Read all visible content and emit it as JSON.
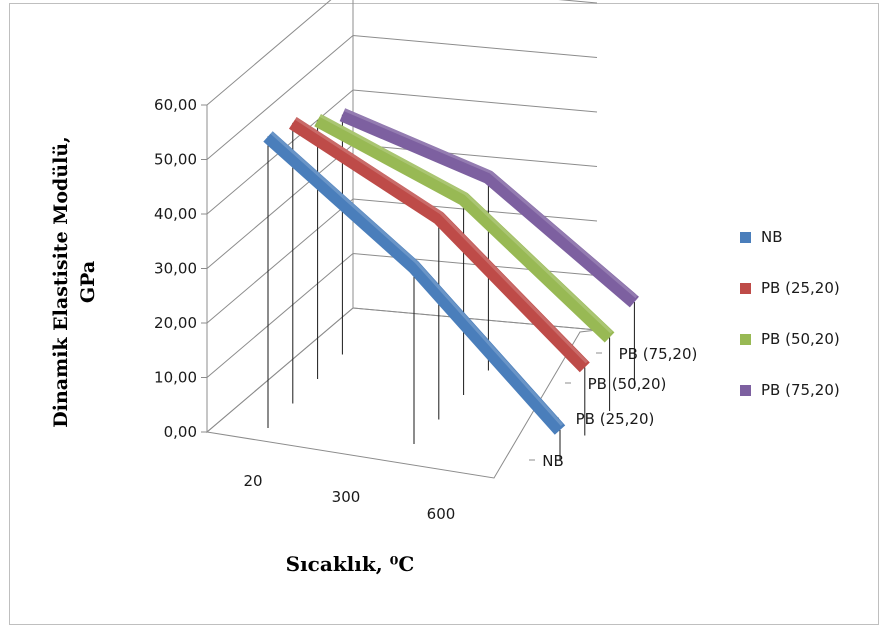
{
  "chart_data": {
    "type": "line",
    "subtype": "3d-line",
    "categories": [
      "20",
      "300",
      "600"
    ],
    "depth_categories": [
      "NB",
      "PB (25,20)",
      "PB (50,20)",
      "PB (75,20)"
    ],
    "series": [
      {
        "name": "NB",
        "values": [
          53.5,
          32.5,
          5.5
        ],
        "color": "#4a7ebb"
      },
      {
        "name": "PB (25,20)",
        "values": [
          51.5,
          37.0,
          12.5
        ],
        "color": "#be4b48"
      },
      {
        "name": "PB (50,20)",
        "values": [
          47.5,
          36.0,
          13.5
        ],
        "color": "#98b954"
      },
      {
        "name": "PB (75,20)",
        "values": [
          44.0,
          35.5,
          15.5
        ],
        "color": "#7d60a0"
      }
    ],
    "y_ticks": [
      "0,00",
      "10,00",
      "20,00",
      "30,00",
      "40,00",
      "50,00",
      "60,00"
    ],
    "ylim": [
      0,
      60
    ],
    "xlabel": "Sıcaklık, ⁰C",
    "ylabel_line1": "Dinamik Elastisite Modülü,",
    "ylabel_line2": "GPa",
    "grid": true,
    "drop_lines": true,
    "legend_position": "right"
  }
}
